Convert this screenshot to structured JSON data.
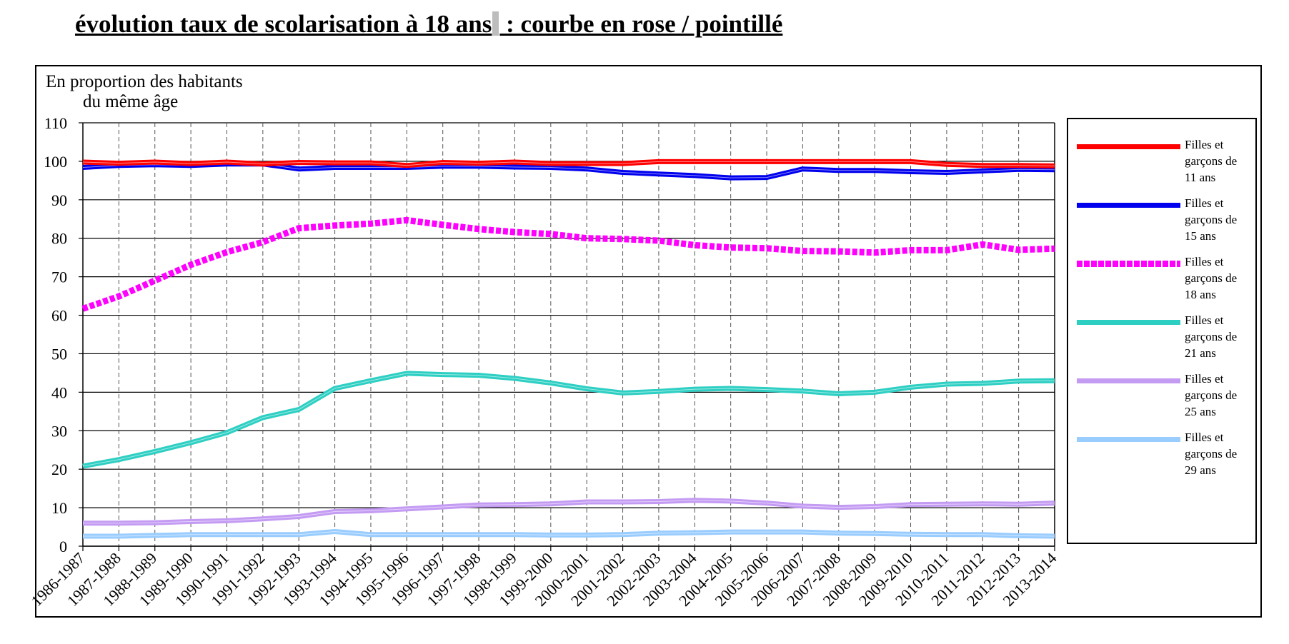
{
  "page": {
    "title_part1": "évolution taux de scolarisation à 18 ans",
    "title_part2": " : courbe en rose / pointillé"
  },
  "chart_data": {
    "type": "line",
    "ylabel_line1": "En proportion des habitants",
    "ylabel_line2": "du même âge",
    "ylim": [
      0,
      110
    ],
    "yticks": [
      "0",
      "10",
      "20",
      "30",
      "40",
      "50",
      "60",
      "70",
      "80",
      "90",
      "100",
      "110"
    ],
    "grid": "horizontal solid, vertical dashed",
    "legend_position": "right",
    "categories": [
      "1986-1987",
      "1987-1988",
      "1988-1989",
      "1989-1990",
      "1990-1991",
      "1991-1992",
      "1992-1993",
      "1993-1994",
      "1994-1995",
      "1995-1996",
      "1996-1997",
      "1997-1998",
      "1998-1999",
      "1999-2000",
      "2000-2001",
      "2001-2002",
      "2002-2003",
      "2003-2004",
      "2004-2005",
      "2005-2006",
      "2006-2007",
      "2007-2008",
      "2008-2009",
      "2009-2010",
      "2010-2011",
      "2011-2012",
      "2012-2013",
      "2013-2014"
    ],
    "series": [
      {
        "name_lines": [
          "Filles et",
          "garçons de",
          "11  ans"
        ],
        "color": "#ff0000",
        "style": "solid",
        "values": [
          99.8,
          99.5,
          99.8,
          99.4,
          99.8,
          99.3,
          99.7,
          99.6,
          99.6,
          98.9,
          99.7,
          99.5,
          99.8,
          99.4,
          99.4,
          99.4,
          99.9,
          99.9,
          99.9,
          99.9,
          99.9,
          99.9,
          99.9,
          99.9,
          99.2,
          98.9,
          98.9,
          98.8
        ]
      },
      {
        "name_lines": [
          "Filles et",
          "garçons de",
          "15 ans"
        ],
        "color": "#0000ee",
        "style": "solid",
        "values": [
          98.4,
          98.9,
          99.1,
          98.9,
          99.3,
          99.3,
          98.0,
          98.4,
          98.4,
          98.4,
          98.7,
          98.7,
          98.5,
          98.4,
          98.0,
          97.1,
          96.7,
          96.3,
          95.7,
          95.8,
          98.0,
          97.6,
          97.6,
          97.3,
          97.1,
          97.5,
          97.9,
          97.8
        ]
      },
      {
        "name_lines": [
          "Filles et",
          "garçons de",
          "18 ans"
        ],
        "color": "#ff00ff",
        "style": "dotted",
        "values": [
          61.7,
          64.9,
          69.0,
          73.1,
          76.4,
          79.0,
          82.6,
          83.3,
          83.8,
          84.7,
          83.5,
          82.4,
          81.6,
          81.1,
          80.0,
          79.8,
          79.4,
          78.2,
          77.6,
          77.4,
          76.7,
          76.6,
          76.3,
          76.9,
          76.9,
          78.4,
          77.0,
          77.3
        ]
      },
      {
        "name_lines": [
          "Filles et",
          "garçons de",
          "21 ans"
        ],
        "color": "#2ecfc3",
        "style": "solid",
        "values": [
          20.8,
          22.5,
          24.6,
          26.9,
          29.5,
          33.4,
          35.5,
          41.0,
          43.0,
          44.9,
          44.6,
          44.4,
          43.6,
          42.4,
          40.9,
          39.8,
          40.2,
          40.8,
          41.0,
          40.7,
          40.3,
          39.6,
          40.0,
          41.3,
          42.1,
          42.3,
          42.9,
          43.0
        ]
      },
      {
        "name_lines": [
          "Filles et",
          "garçons de",
          "25 ans"
        ],
        "color": "#c49bf3",
        "style": "solid",
        "values": [
          6.0,
          6.0,
          6.1,
          6.4,
          6.6,
          7.1,
          7.7,
          9.0,
          9.2,
          9.7,
          10.2,
          10.7,
          10.8,
          11.0,
          11.5,
          11.5,
          11.6,
          11.9,
          11.7,
          11.2,
          10.4,
          10.1,
          10.3,
          10.8,
          10.9,
          11.0,
          10.9,
          11.2
        ]
      },
      {
        "name_lines": [
          "Filles et",
          "garçons de",
          "29 ans"
        ],
        "color": "#99ccff",
        "style": "solid",
        "values": [
          2.6,
          2.6,
          2.8,
          3.0,
          3.0,
          3.0,
          3.0,
          3.8,
          3.0,
          3.0,
          3.0,
          3.0,
          3.0,
          2.9,
          2.9,
          3.0,
          3.4,
          3.5,
          3.7,
          3.7,
          3.7,
          3.4,
          3.3,
          3.1,
          3.0,
          3.0,
          2.7,
          2.6
        ]
      }
    ]
  }
}
